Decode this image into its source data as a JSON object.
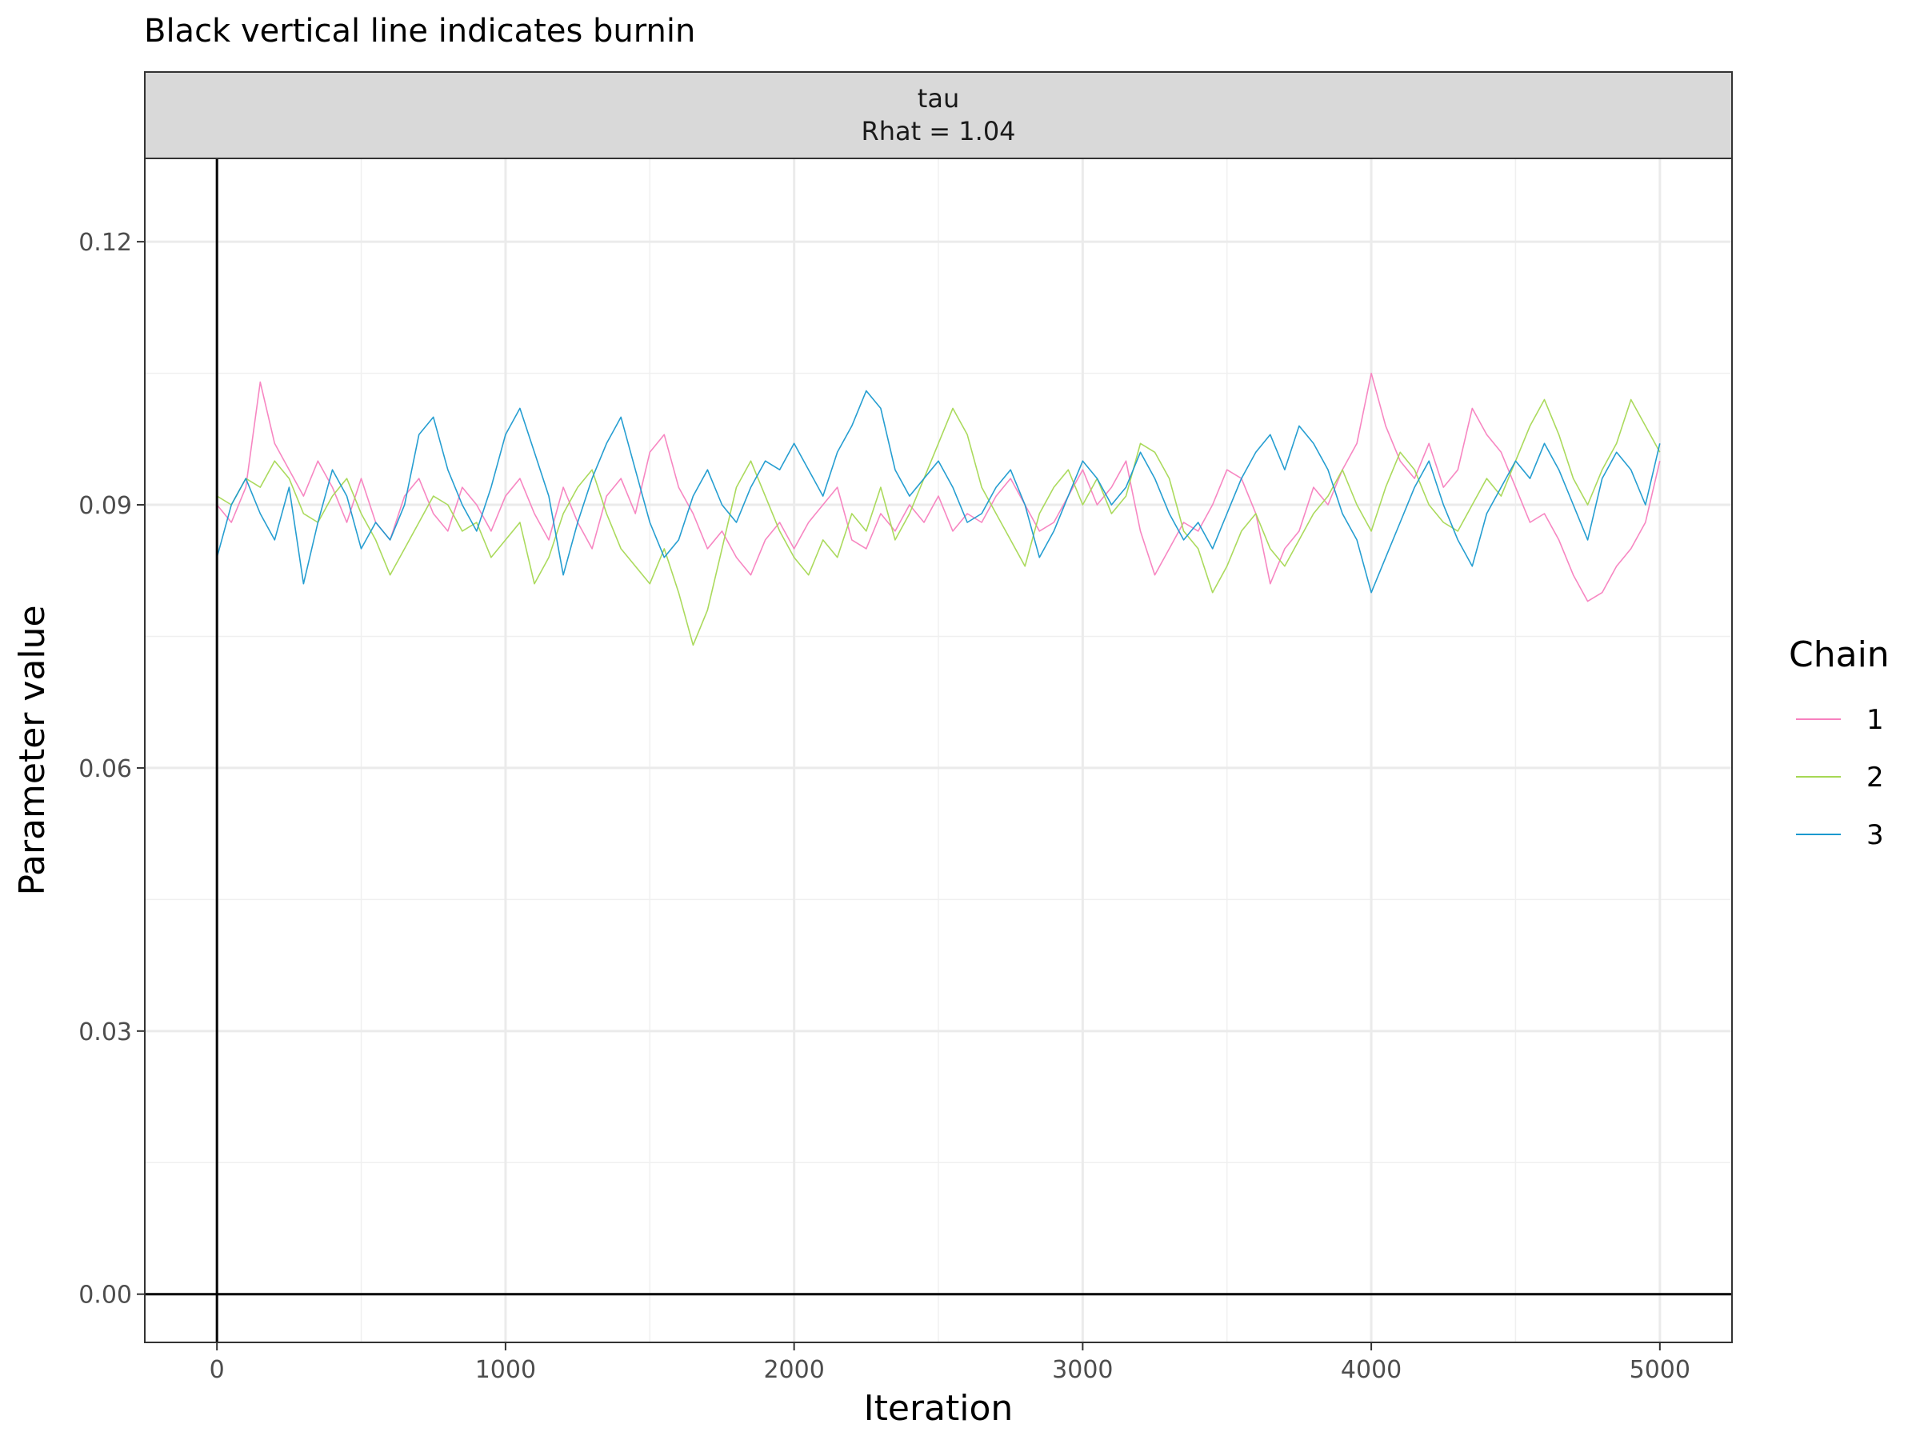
{
  "chart_data": {
    "type": "line",
    "title": "Black vertical line indicates burnin",
    "facet": {
      "label": "tau",
      "sublabel": "Rhat = 1.04"
    },
    "xlabel": "Iteration",
    "ylabel": "Parameter value",
    "xlim": [
      -250,
      5250
    ],
    "ylim": [
      -0.0055,
      0.1295
    ],
    "x_ticks": [
      0,
      1000,
      2000,
      3000,
      4000,
      5000
    ],
    "x_tick_labels": [
      "0",
      "1000",
      "2000",
      "3000",
      "4000",
      "5000"
    ],
    "y_ticks": [
      0.0,
      0.03,
      0.06,
      0.09,
      0.12
    ],
    "y_tick_labels": [
      "0.00",
      "0.03",
      "0.06",
      "0.09",
      "0.12"
    ],
    "grid": true,
    "burnin_x": 0,
    "hline_y": 0,
    "legend": {
      "title": "Chain",
      "position": "right"
    },
    "series": [
      {
        "name": "1",
        "color": "#f781bf",
        "x": [
          0,
          50,
          100,
          150,
          200,
          250,
          300,
          350,
          400,
          450,
          500,
          550,
          600,
          650,
          700,
          750,
          800,
          850,
          900,
          950,
          1000,
          1050,
          1100,
          1150,
          1200,
          1250,
          1300,
          1350,
          1400,
          1450,
          1500,
          1550,
          1600,
          1650,
          1700,
          1750,
          1800,
          1850,
          1900,
          1950,
          2000,
          2050,
          2100,
          2150,
          2200,
          2250,
          2300,
          2350,
          2400,
          2450,
          2500,
          2550,
          2600,
          2650,
          2700,
          2750,
          2800,
          2850,
          2900,
          2950,
          3000,
          3050,
          3100,
          3150,
          3200,
          3250,
          3300,
          3350,
          3400,
          3450,
          3500,
          3550,
          3600,
          3650,
          3700,
          3750,
          3800,
          3850,
          3900,
          3950,
          4000,
          4050,
          4100,
          4150,
          4200,
          4250,
          4300,
          4350,
          4400,
          4450,
          4500,
          4550,
          4600,
          4650,
          4700,
          4750,
          4800,
          4850,
          4900,
          4950,
          5000
        ],
        "y": [
          0.09,
          0.088,
          0.092,
          0.104,
          0.097,
          0.094,
          0.091,
          0.095,
          0.092,
          0.088,
          0.093,
          0.088,
          0.086,
          0.091,
          0.093,
          0.089,
          0.087,
          0.092,
          0.09,
          0.087,
          0.091,
          0.093,
          0.089,
          0.086,
          0.092,
          0.088,
          0.085,
          0.091,
          0.093,
          0.089,
          0.096,
          0.098,
          0.092,
          0.089,
          0.085,
          0.087,
          0.084,
          0.082,
          0.086,
          0.088,
          0.085,
          0.088,
          0.09,
          0.092,
          0.086,
          0.085,
          0.089,
          0.087,
          0.09,
          0.088,
          0.091,
          0.087,
          0.089,
          0.088,
          0.091,
          0.093,
          0.09,
          0.087,
          0.088,
          0.091,
          0.094,
          0.09,
          0.092,
          0.095,
          0.087,
          0.082,
          0.085,
          0.088,
          0.087,
          0.09,
          0.094,
          0.093,
          0.089,
          0.081,
          0.085,
          0.087,
          0.092,
          0.09,
          0.094,
          0.097,
          0.105,
          0.099,
          0.095,
          0.093,
          0.097,
          0.092,
          0.094,
          0.101,
          0.098,
          0.096,
          0.092,
          0.088,
          0.089,
          0.086,
          0.082,
          0.079,
          0.08,
          0.083,
          0.085,
          0.088,
          0.095
        ]
      },
      {
        "name": "2",
        "color": "#a6d854",
        "x": [
          0,
          50,
          100,
          150,
          200,
          250,
          300,
          350,
          400,
          450,
          500,
          550,
          600,
          650,
          700,
          750,
          800,
          850,
          900,
          950,
          1000,
          1050,
          1100,
          1150,
          1200,
          1250,
          1300,
          1350,
          1400,
          1450,
          1500,
          1550,
          1600,
          1650,
          1700,
          1750,
          1800,
          1850,
          1900,
          1950,
          2000,
          2050,
          2100,
          2150,
          2200,
          2250,
          2300,
          2350,
          2400,
          2450,
          2500,
          2550,
          2600,
          2650,
          2700,
          2750,
          2800,
          2850,
          2900,
          2950,
          3000,
          3050,
          3100,
          3150,
          3200,
          3250,
          3300,
          3350,
          3400,
          3450,
          3500,
          3550,
          3600,
          3650,
          3700,
          3750,
          3800,
          3850,
          3900,
          3950,
          4000,
          4050,
          4100,
          4150,
          4200,
          4250,
          4300,
          4350,
          4400,
          4450,
          4500,
          4550,
          4600,
          4650,
          4700,
          4750,
          4800,
          4850,
          4900,
          4950,
          5000
        ],
        "y": [
          0.091,
          0.09,
          0.093,
          0.092,
          0.095,
          0.093,
          0.089,
          0.088,
          0.091,
          0.093,
          0.089,
          0.086,
          0.082,
          0.085,
          0.088,
          0.091,
          0.09,
          0.087,
          0.088,
          0.084,
          0.086,
          0.088,
          0.081,
          0.084,
          0.089,
          0.092,
          0.094,
          0.089,
          0.085,
          0.083,
          0.081,
          0.085,
          0.08,
          0.074,
          0.078,
          0.085,
          0.092,
          0.095,
          0.091,
          0.087,
          0.084,
          0.082,
          0.086,
          0.084,
          0.089,
          0.087,
          0.092,
          0.086,
          0.089,
          0.093,
          0.097,
          0.101,
          0.098,
          0.092,
          0.089,
          0.086,
          0.083,
          0.089,
          0.092,
          0.094,
          0.09,
          0.093,
          0.089,
          0.091,
          0.097,
          0.096,
          0.093,
          0.087,
          0.085,
          0.08,
          0.083,
          0.087,
          0.089,
          0.085,
          0.083,
          0.086,
          0.089,
          0.091,
          0.094,
          0.09,
          0.087,
          0.092,
          0.096,
          0.094,
          0.09,
          0.088,
          0.087,
          0.09,
          0.093,
          0.091,
          0.095,
          0.099,
          0.102,
          0.098,
          0.093,
          0.09,
          0.094,
          0.097,
          0.102,
          0.099,
          0.096
        ]
      },
      {
        "name": "3",
        "color": "#1a99cf",
        "x": [
          0,
          50,
          100,
          150,
          200,
          250,
          300,
          350,
          400,
          450,
          500,
          550,
          600,
          650,
          700,
          750,
          800,
          850,
          900,
          950,
          1000,
          1050,
          1100,
          1150,
          1200,
          1250,
          1300,
          1350,
          1400,
          1450,
          1500,
          1550,
          1600,
          1650,
          1700,
          1750,
          1800,
          1850,
          1900,
          1950,
          2000,
          2050,
          2100,
          2150,
          2200,
          2250,
          2300,
          2350,
          2400,
          2450,
          2500,
          2550,
          2600,
          2650,
          2700,
          2750,
          2800,
          2850,
          2900,
          2950,
          3000,
          3050,
          3100,
          3150,
          3200,
          3250,
          3300,
          3350,
          3400,
          3450,
          3500,
          3550,
          3600,
          3650,
          3700,
          3750,
          3800,
          3850,
          3900,
          3950,
          4000,
          4050,
          4100,
          4150,
          4200,
          4250,
          4300,
          4350,
          4400,
          4450,
          4500,
          4550,
          4600,
          4650,
          4700,
          4750,
          4800,
          4850,
          4900,
          4950,
          5000
        ],
        "y": [
          0.084,
          0.09,
          0.093,
          0.089,
          0.086,
          0.092,
          0.081,
          0.088,
          0.094,
          0.091,
          0.085,
          0.088,
          0.086,
          0.09,
          0.098,
          0.1,
          0.094,
          0.09,
          0.087,
          0.092,
          0.098,
          0.101,
          0.096,
          0.091,
          0.082,
          0.088,
          0.093,
          0.097,
          0.1,
          0.094,
          0.088,
          0.084,
          0.086,
          0.091,
          0.094,
          0.09,
          0.088,
          0.092,
          0.095,
          0.094,
          0.097,
          0.094,
          0.091,
          0.096,
          0.099,
          0.103,
          0.101,
          0.094,
          0.091,
          0.093,
          0.095,
          0.092,
          0.088,
          0.089,
          0.092,
          0.094,
          0.09,
          0.084,
          0.087,
          0.091,
          0.095,
          0.093,
          0.09,
          0.092,
          0.096,
          0.093,
          0.089,
          0.086,
          0.088,
          0.085,
          0.089,
          0.093,
          0.096,
          0.098,
          0.094,
          0.099,
          0.097,
          0.094,
          0.089,
          0.086,
          0.08,
          0.084,
          0.088,
          0.092,
          0.095,
          0.09,
          0.086,
          0.083,
          0.089,
          0.092,
          0.095,
          0.093,
          0.097,
          0.094,
          0.09,
          0.086,
          0.093,
          0.096,
          0.094,
          0.09,
          0.097
        ]
      }
    ]
  }
}
